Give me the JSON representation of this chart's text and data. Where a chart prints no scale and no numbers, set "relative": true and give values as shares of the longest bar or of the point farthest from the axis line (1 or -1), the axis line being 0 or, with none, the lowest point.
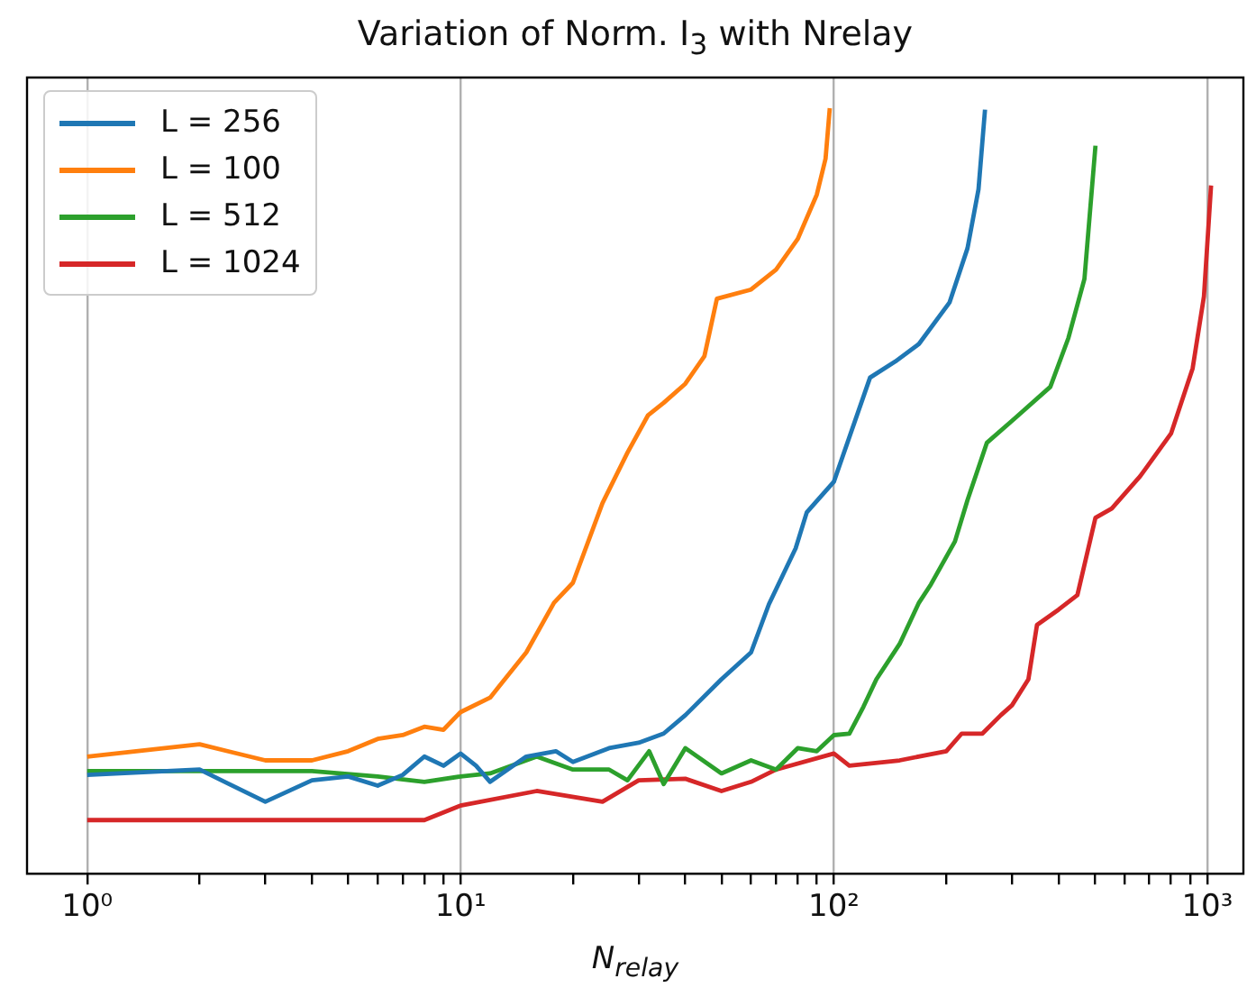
{
  "chart_data": {
    "type": "line",
    "title": "Variation of Norm. I$_{3}$ with Nrelay",
    "xlabel": "N$_{relay}$",
    "relative": true,
    "log": "x",
    "grid": "x",
    "legend": "top left",
    "marker": "none",
    "line_style": "solid",
    "xlim": [
      0.69,
      1250
    ],
    "xticks": [
      {
        "value": 1,
        "label": "10⁰"
      },
      {
        "value": 2,
        "label": null
      },
      {
        "value": 3,
        "label": null
      },
      {
        "value": 4,
        "label": null
      },
      {
        "value": 5,
        "label": null
      },
      {
        "value": 6,
        "label": null
      },
      {
        "value": 7,
        "label": null
      },
      {
        "value": 8,
        "label": null
      },
      {
        "value": 9,
        "label": null
      },
      {
        "value": 10,
        "label": "10¹"
      },
      {
        "value": 20,
        "label": null
      },
      {
        "value": 30,
        "label": null
      },
      {
        "value": 40,
        "label": null
      },
      {
        "value": 50,
        "label": null
      },
      {
        "value": 60,
        "label": null
      },
      {
        "value": 70,
        "label": null
      },
      {
        "value": 80,
        "label": null
      },
      {
        "value": 90,
        "label": null
      },
      {
        "value": 100,
        "label": "10²"
      },
      {
        "value": 200,
        "label": null
      },
      {
        "value": 300,
        "label": null
      },
      {
        "value": 400,
        "label": null
      },
      {
        "value": 500,
        "label": null
      },
      {
        "value": 600,
        "label": null
      },
      {
        "value": 700,
        "label": null
      },
      {
        "value": 800,
        "label": null
      },
      {
        "value": 900,
        "label": null
      },
      {
        "value": 1000,
        "label": "10³"
      }
    ],
    "series": [
      {
        "name": "L = 256",
        "color": "#1f77b4",
        "x": [
          1,
          2,
          3,
          4,
          5,
          6,
          7,
          8,
          9,
          10,
          11,
          12,
          15,
          18,
          20,
          25,
          30,
          35,
          40,
          50,
          60,
          67,
          79,
          84.6,
          100,
          125,
          146,
          169,
          204,
          228,
          244,
          254
        ],
        "values": [
          0.129,
          0.136,
          0.094,
          0.122,
          0.127,
          0.115,
          0.129,
          0.153,
          0.141,
          0.157,
          0.141,
          0.12,
          0.153,
          0.16,
          0.146,
          0.164,
          0.171,
          0.183,
          0.207,
          0.254,
          0.289,
          0.352,
          0.425,
          0.472,
          0.512,
          0.648,
          0.669,
          0.692,
          0.746,
          0.817,
          0.894,
          0.998
        ]
      },
      {
        "name": "L = 100",
        "color": "#ff7f0e",
        "x": [
          1,
          2,
          3,
          4,
          5,
          6,
          7,
          8,
          9,
          10,
          12,
          15,
          17.8,
          20,
          24,
          28,
          31.8,
          35,
          40,
          45,
          48.6,
          60,
          70,
          80,
          90,
          95,
          97.5
        ],
        "values": [
          0.153,
          0.169,
          0.148,
          0.148,
          0.16,
          0.176,
          0.181,
          0.192,
          0.188,
          0.211,
          0.23,
          0.289,
          0.354,
          0.38,
          0.484,
          0.55,
          0.599,
          0.615,
          0.64,
          0.676,
          0.751,
          0.763,
          0.789,
          0.829,
          0.887,
          0.934,
          1.0
        ]
      },
      {
        "name": "L = 512",
        "color": "#2ca02c",
        "x": [
          1,
          2,
          4,
          6,
          8,
          10,
          12,
          16,
          20,
          25,
          28,
          32,
          35,
          40,
          50,
          60,
          70,
          80,
          90,
          100,
          110,
          120,
          130,
          150,
          169,
          182,
          211,
          228,
          257,
          304,
          380,
          425,
          469,
          502
        ],
        "values": [
          0.134,
          0.134,
          0.134,
          0.127,
          0.12,
          0.127,
          0.131,
          0.153,
          0.136,
          0.136,
          0.122,
          0.16,
          0.117,
          0.164,
          0.131,
          0.148,
          0.136,
          0.164,
          0.16,
          0.181,
          0.183,
          0.218,
          0.254,
          0.3,
          0.354,
          0.378,
          0.434,
          0.488,
          0.563,
          0.594,
          0.636,
          0.7,
          0.777,
          0.951
        ]
      },
      {
        "name": "L = 1024",
        "color": "#d62728",
        "x": [
          1,
          8,
          10,
          16,
          24,
          30,
          40,
          50,
          60,
          70,
          100,
          110,
          150,
          200,
          220,
          250,
          280,
          300,
          332,
          350,
          400,
          449,
          502,
          555,
          661,
          800,
          914,
          980,
          1024
        ],
        "values": [
          0.07,
          0.07,
          0.089,
          0.108,
          0.094,
          0.122,
          0.124,
          0.108,
          0.12,
          0.136,
          0.157,
          0.141,
          0.148,
          0.16,
          0.183,
          0.183,
          0.207,
          0.22,
          0.254,
          0.325,
          0.345,
          0.364,
          0.465,
          0.477,
          0.519,
          0.575,
          0.66,
          0.754,
          0.899
        ]
      }
    ]
  }
}
